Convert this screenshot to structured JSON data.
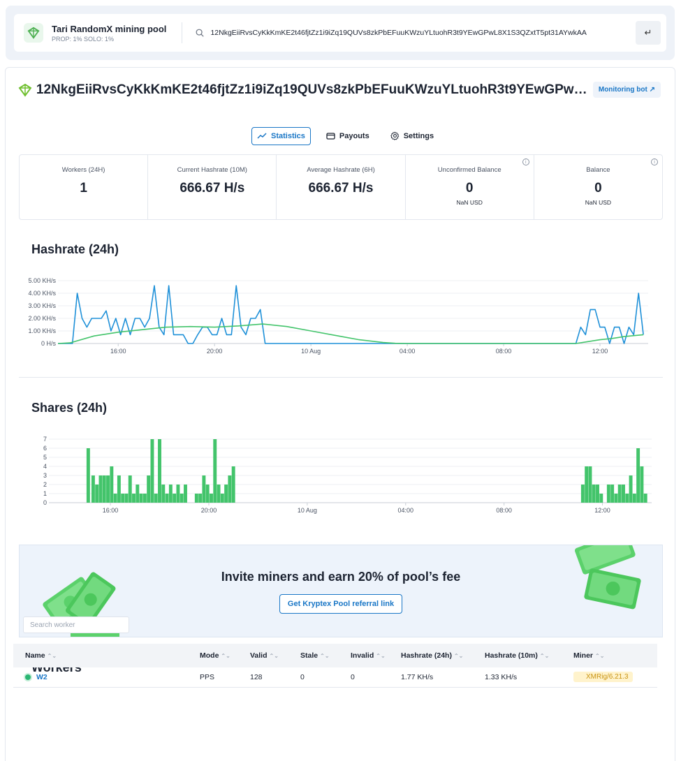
{
  "header": {
    "pool_name": "Tari RandomX mining pool",
    "pool_fees": "PROP: 1% SOLO: 1%",
    "search_value": "12NkgEiiRvsCyKkKmKE2t46fjtZz1i9iZq19QUVs8zkPbEFuuKWzuYLtuohR3t9YEwGPwL8X1S3QZxtT5pt31AYwkAA",
    "enter_icon": "↵"
  },
  "wallet": {
    "address": "12NkgEiiRvsCyKkKmKE2t46fjtZz1i9iZq19QUVs8zkPbEFuuKWzuYLtuohR3t9YEwGPwL8X1S3QZxtT5pt31AYwkAA",
    "monitoring_bot_label": "Monitoring bot ↗"
  },
  "tabs": [
    {
      "label": "Statistics",
      "icon": "trend-icon",
      "active": true
    },
    {
      "label": "Payouts",
      "icon": "wallet-icon",
      "active": false
    },
    {
      "label": "Settings",
      "icon": "gear-icon",
      "active": false
    }
  ],
  "stats": [
    {
      "label": "Workers (24H)",
      "value": "1",
      "sub": ""
    },
    {
      "label": "Current Hashrate (10M)",
      "value": "666.67 H/s",
      "sub": ""
    },
    {
      "label": "Average Hashrate (6H)",
      "value": "666.67 H/s",
      "sub": ""
    },
    {
      "label": "Unconfirmed Balance",
      "value": "0",
      "sub": "NaN USD"
    },
    {
      "label": "Balance",
      "value": "0",
      "sub": "NaN USD"
    }
  ],
  "chart_data": [
    {
      "type": "line",
      "title": "Hashrate (24h)",
      "x_ticks": [
        "16:00",
        "20:00",
        "10 Aug",
        "04:00",
        "08:00",
        "12:00"
      ],
      "y_ticks": [
        "0 H/s",
        "1.00 KH/s",
        "2.00 KH/s",
        "3.00 KH/s",
        "4.00 KH/s",
        "5.00 KH/s"
      ],
      "ylim": [
        0,
        5
      ],
      "xlim": [
        13.5,
        38
      ],
      "x_tick_hours": [
        16,
        20,
        24,
        28,
        32,
        36
      ],
      "colors": {
        "current": "#1e90d8",
        "average": "#43c46b"
      },
      "series": [
        {
          "values_x": [
            13.5,
            14.1,
            14.3,
            14.5,
            14.7,
            14.9,
            15.1,
            15.3,
            15.5,
            15.7,
            15.9,
            16.1,
            16.3,
            16.5,
            16.7,
            16.9,
            17.1,
            17.3,
            17.5,
            17.7,
            17.9,
            18.1,
            18.3,
            18.5,
            18.7,
            18.9,
            19.1,
            19.3,
            19.5,
            19.7,
            19.9,
            20.1,
            20.3,
            20.5,
            20.7,
            20.9,
            21.1,
            21.3,
            21.5,
            21.7,
            21.9,
            22.1,
            24,
            26,
            27,
            28,
            30,
            32,
            34,
            34.7,
            35.0,
            35.2,
            35.4,
            35.6,
            35.8,
            36.0,
            36.2,
            36.4,
            36.6,
            36.8,
            37.0,
            37.2,
            37.4,
            37.6,
            37.8
          ],
          "values_y": [
            0,
            0,
            4.0,
            2.0,
            1.3,
            2.0,
            2.0,
            2.0,
            2.6,
            1.0,
            2.0,
            0.7,
            2.0,
            0.7,
            2.0,
            2.0,
            1.3,
            2.0,
            4.6,
            1.3,
            0.7,
            4.6,
            0.7,
            0.7,
            0.7,
            0,
            0,
            0.7,
            1.3,
            1.3,
            0.7,
            0.7,
            2.0,
            0.7,
            0.7,
            4.6,
            1.3,
            0.7,
            2.0,
            2.0,
            2.7,
            0,
            0,
            0,
            0,
            0,
            0,
            0,
            0,
            0,
            0,
            1.3,
            0.7,
            2.7,
            2.7,
            1.3,
            1.3,
            0,
            1.3,
            1.3,
            0,
            1.3,
            0.7,
            4.0,
            0.7
          ]
        },
        {
          "values_x": [
            13.5,
            14,
            15,
            16,
            17,
            18,
            19,
            20,
            21,
            22,
            23,
            24,
            25,
            26,
            27,
            27.5,
            28,
            30,
            32,
            34,
            35,
            35.5,
            36,
            36.5,
            37,
            37.8
          ],
          "values_y": [
            0,
            0.05,
            0.6,
            0.9,
            1.1,
            1.3,
            1.35,
            1.3,
            1.4,
            1.55,
            1.35,
            1.0,
            0.65,
            0.3,
            0.08,
            0.02,
            0,
            0,
            0,
            0,
            0,
            0.15,
            0.3,
            0.4,
            0.55,
            0.7
          ]
        }
      ]
    },
    {
      "type": "bar",
      "title": "Shares (24h)",
      "x_ticks": [
        "16:00",
        "20:00",
        "10 Aug",
        "04:00",
        "08:00",
        "12:00"
      ],
      "y_ticks": [
        "0",
        "1",
        "2",
        "3",
        "4",
        "5",
        "6",
        "7"
      ],
      "ylim": [
        0,
        7
      ],
      "xlim": [
        13.5,
        38
      ],
      "x_tick_hours": [
        16,
        20,
        24,
        28,
        32,
        36
      ],
      "color": "#43c46b",
      "x": [
        15.1,
        15.3,
        15.45,
        15.6,
        15.75,
        15.9,
        16.05,
        16.2,
        16.35,
        16.5,
        16.65,
        16.8,
        16.95,
        17.1,
        17.25,
        17.4,
        17.55,
        17.7,
        17.85,
        18.0,
        18.15,
        18.3,
        18.45,
        18.6,
        18.75,
        18.9,
        19.05,
        19.5,
        19.65,
        19.8,
        19.95,
        20.1,
        20.25,
        20.4,
        20.55,
        20.7,
        20.85,
        21.0,
        21.15,
        21.3,
        35.2,
        35.35,
        35.5,
        35.65,
        35.8,
        35.95,
        36.1,
        36.25,
        36.4,
        36.55,
        36.7,
        36.85,
        37.0,
        37.15,
        37.3,
        37.45,
        37.6,
        37.75
      ],
      "values": [
        6,
        3,
        2,
        3,
        3,
        3,
        4,
        1,
        3,
        1,
        1,
        3,
        1,
        2,
        1,
        1,
        3,
        7,
        1,
        7,
        2,
        1,
        2,
        1,
        2,
        1,
        2,
        1,
        1,
        3,
        2,
        1,
        7,
        2,
        1,
        2,
        3,
        4,
        0,
        0,
        2,
        4,
        4,
        2,
        2,
        1,
        0,
        2,
        2,
        1,
        2,
        2,
        1,
        3,
        1,
        6,
        4,
        1
      ]
    }
  ],
  "banner": {
    "title": "Invite miners and earn 20% of pool’s fee",
    "button_label": "Get Kryptex Pool referral link"
  },
  "workers": {
    "title": "Workers",
    "search_placeholder": "Search worker",
    "columns": [
      "Name",
      "Mode",
      "Valid",
      "Stale",
      "Invalid",
      "Hashrate (24h)",
      "Hashrate (10m)",
      "Miner"
    ],
    "rows": [
      {
        "name": "W2",
        "mode": "PPS",
        "valid": "128",
        "stale": "0",
        "invalid": "0",
        "hashrate_24h": "1.77 KH/s",
        "hashrate_10m": "1.33 KH/s",
        "miner": "XMRig/6.21.3"
      }
    ]
  }
}
